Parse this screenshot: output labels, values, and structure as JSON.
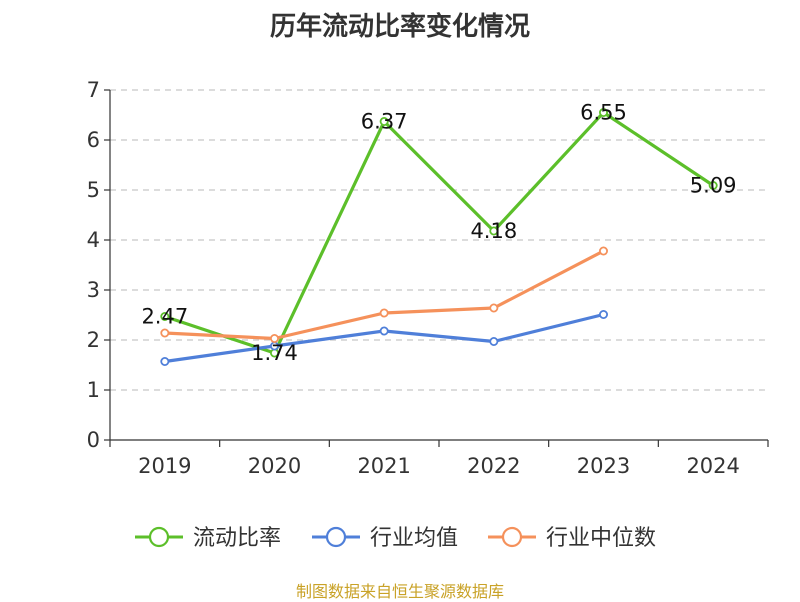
{
  "title": "历年流动比率变化情况",
  "source": "制图数据来自恒生聚源数据库",
  "chart_data": {
    "type": "line",
    "title": "历年流动比率变化情况",
    "categories": [
      "2019",
      "2020",
      "2021",
      "2022",
      "2023",
      "2024"
    ],
    "ylim": [
      0,
      7
    ],
    "yticks": [
      0,
      1,
      2,
      3,
      4,
      5,
      6,
      7
    ],
    "grid": true,
    "legend_position": "bottom",
    "series": [
      {
        "name": "流动比率",
        "color": "#5cbf2a",
        "values": [
          2.47,
          1.74,
          6.37,
          4.18,
          6.55,
          5.09
        ],
        "labels": [
          "2.47",
          "1.74",
          "6.37",
          "4.18",
          "6.55",
          "5.09"
        ]
      },
      {
        "name": "行业均值",
        "color": "#4f7fd9",
        "values": [
          1.57,
          1.88,
          2.18,
          1.97,
          2.51,
          null
        ]
      },
      {
        "name": "行业中位数",
        "color": "#f5915b",
        "values": [
          2.14,
          2.03,
          2.54,
          2.64,
          3.78,
          null
        ]
      }
    ]
  }
}
